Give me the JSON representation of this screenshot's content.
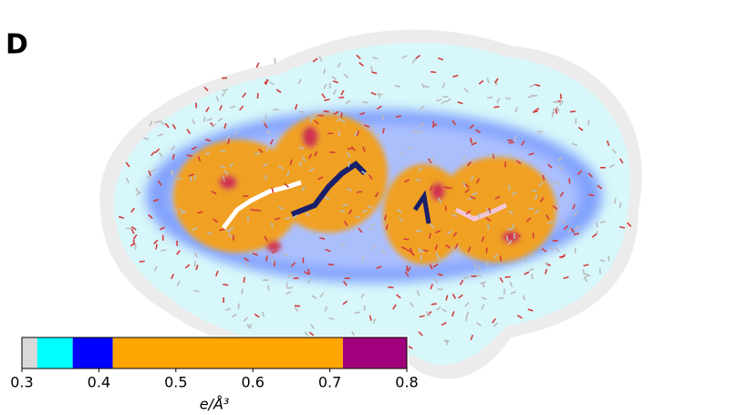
{
  "panel_label": "D",
  "chart_data": {
    "type": "colorbar",
    "xlabel": "e/Å³",
    "xlim": [
      0.3,
      0.8
    ],
    "xticks": [
      0.3,
      0.4,
      0.5,
      0.6,
      0.7,
      0.8
    ],
    "bins": [
      0.3,
      0.32,
      0.366,
      0.418,
      0.717,
      0.8
    ],
    "colors": [
      "#d9d9d9",
      "#00ffff",
      "#0000ff",
      "#ffa500",
      "#a0007c"
    ]
  }
}
